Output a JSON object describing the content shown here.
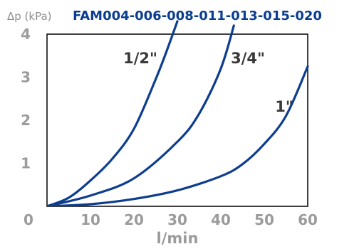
{
  "header": {
    "unit_label": "Δp (kPa)",
    "title": "FAM004-006-008-011-013-015-020"
  },
  "chart_data": {
    "type": "line",
    "title": "FAM004-006-008-011-013-015-020",
    "ylabel": "Δp (kPa)",
    "xlabel": "l/min",
    "xlim": [
      0,
      60
    ],
    "ylim": [
      0,
      4
    ],
    "x_ticks": [
      "0",
      "10",
      "20",
      "30",
      "40",
      "50",
      "60"
    ],
    "y_ticks": [
      "1",
      "2",
      "3",
      "4"
    ],
    "grid": false,
    "line_color": "#0d3d8f",
    "series": [
      {
        "name": "1/2\"",
        "x": [
          0,
          5,
          10,
          15,
          20,
          25,
          27.5,
          30
        ],
        "y": [
          0,
          0.2,
          0.6,
          1.1,
          1.8,
          2.95,
          3.6,
          4.3
        ]
      },
      {
        "name": "3/4\"",
        "x": [
          0,
          10,
          20,
          30,
          35,
          40,
          43
        ],
        "y": [
          0,
          0.25,
          0.65,
          1.5,
          2.15,
          3.2,
          4.2
        ]
      },
      {
        "name": "1\"",
        "x": [
          0,
          10,
          20,
          30,
          40,
          45,
          50,
          55,
          60
        ],
        "y": [
          0,
          0.05,
          0.17,
          0.37,
          0.7,
          0.98,
          1.45,
          2.1,
          3.25
        ]
      }
    ]
  }
}
